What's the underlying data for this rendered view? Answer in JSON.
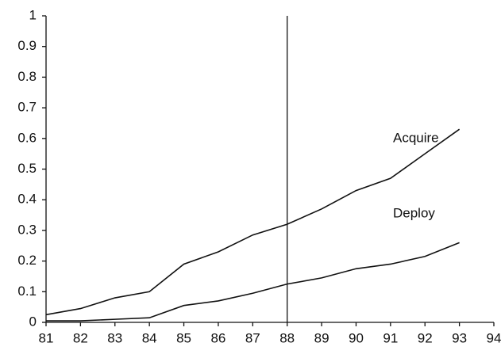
{
  "chart_data": {
    "type": "line",
    "x": [
      81,
      82,
      83,
      84,
      85,
      86,
      87,
      88,
      89,
      90,
      91,
      92,
      93
    ],
    "series": [
      {
        "name": "Acquire",
        "color": "#111111",
        "values": [
          0.025,
          0.045,
          0.08,
          0.1,
          0.19,
          0.23,
          0.285,
          0.32,
          0.37,
          0.43,
          0.47,
          0.55,
          0.63
        ]
      },
      {
        "name": "Deploy",
        "color": "#111111",
        "values": [
          0.005,
          0.005,
          0.01,
          0.015,
          0.055,
          0.07,
          0.095,
          0.125,
          0.145,
          0.175,
          0.19,
          0.215,
          0.26
        ]
      }
    ],
    "xlim": [
      81,
      94
    ],
    "xticks": [
      81,
      82,
      83,
      84,
      85,
      86,
      87,
      88,
      89,
      90,
      91,
      92,
      93,
      94
    ],
    "ylim": [
      0,
      1
    ],
    "yticks": [
      0,
      0.1,
      0.2,
      0.3,
      0.4,
      0.5,
      0.6,
      0.7,
      0.8,
      0.9,
      1
    ],
    "vline": 88,
    "grid": false
  }
}
